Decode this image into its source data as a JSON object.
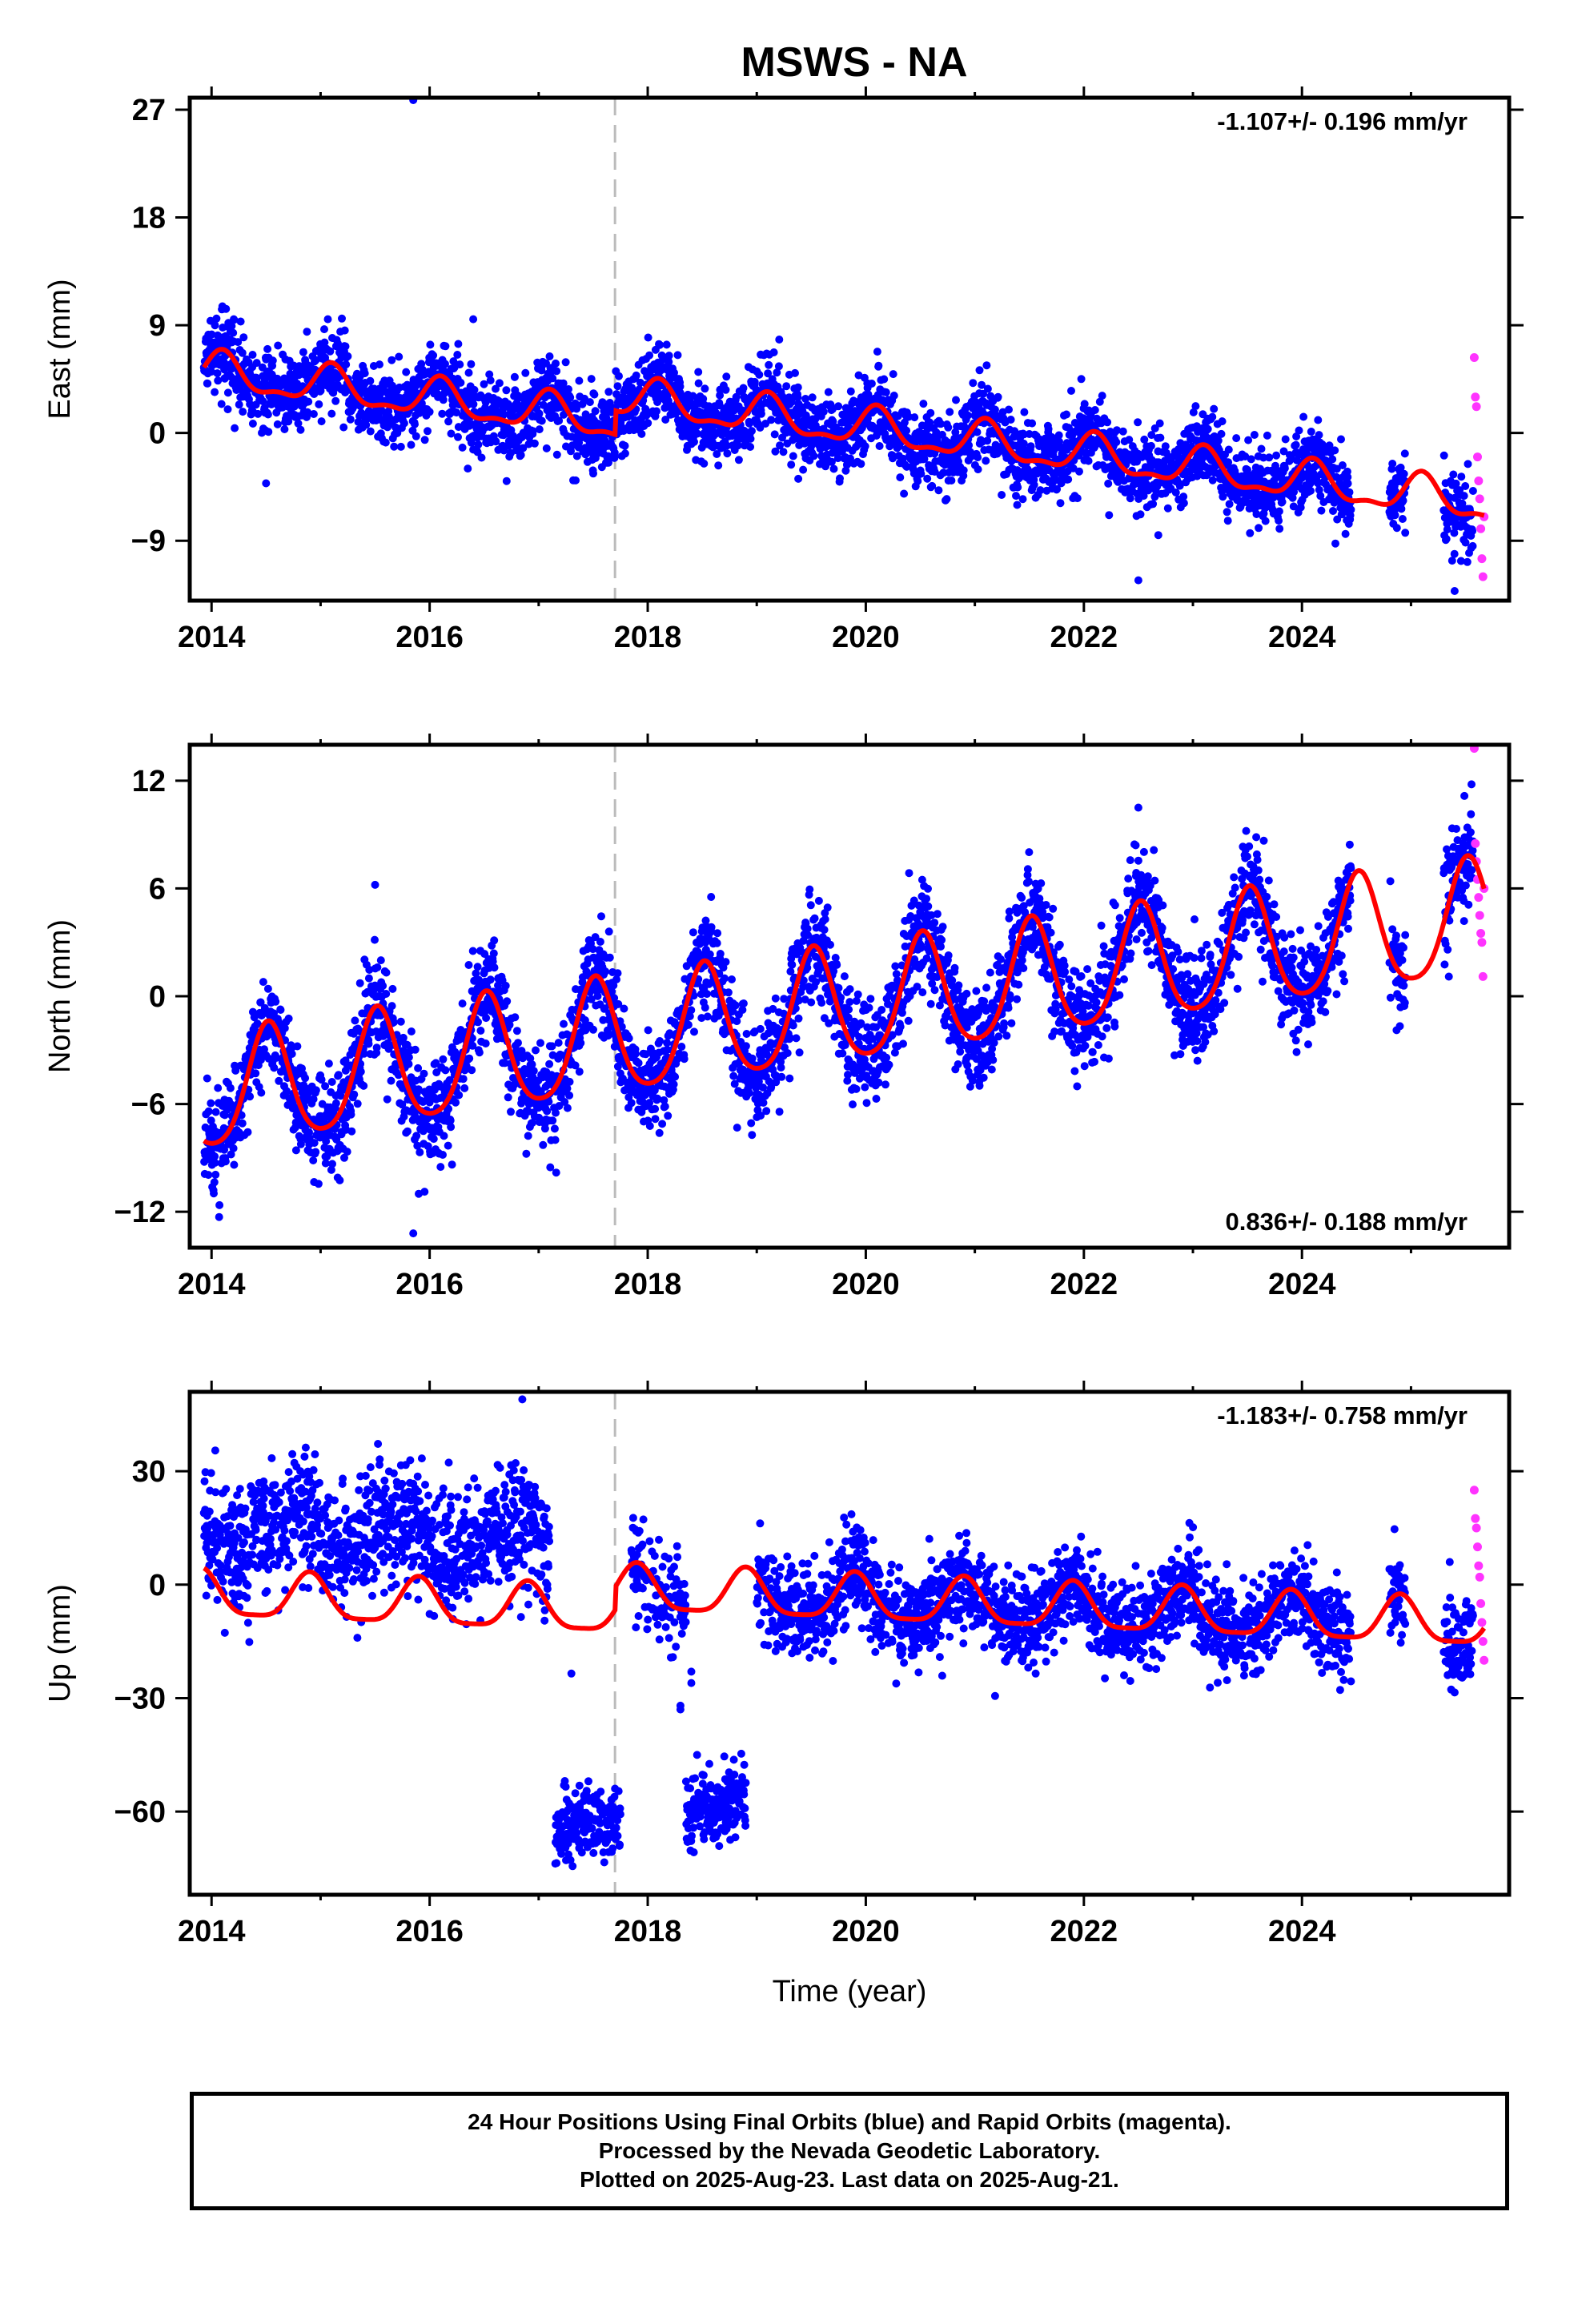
{
  "chart_data": {
    "type": "scatter",
    "title": "MSWS - NA",
    "xlabel": "Time (year)",
    "xlim": [
      2013.8,
      2025.9
    ],
    "x_ticks": [
      "2014",
      "2016",
      "2018",
      "2020",
      "2022",
      "2024"
    ],
    "antenna_change_year": 2017.7,
    "series_legend": {
      "final_orbits_color": "#0000ff",
      "rapid_orbits_color": "#ff33ff",
      "model_color": "#ff0000"
    },
    "panels": [
      {
        "name": "east",
        "ylabel": "East (mm)",
        "ylim": [
          -14,
          28
        ],
        "y_ticks": [
          "27",
          "18",
          "9",
          "0",
          "-9"
        ],
        "rate_text": "-1.107+/- 0.196 mm/yr",
        "rate_position": "top-right",
        "trend_rate": -1.107,
        "trend_intercept_2014": 5.0,
        "annual_amplitude": 1.5,
        "annual_phase_peak": 0.1,
        "semiannual_amplitude": 0.6,
        "offset_at_antenna_change": 2.0,
        "noise_std": 1.6,
        "outliers": [
          [
            2015.85,
            27.8
          ],
          [
            2016.4,
            9.5
          ],
          [
            2014.5,
            -4.2
          ],
          [
            2022.5,
            -12.3
          ],
          [
            2025.4,
            -13.2
          ]
        ],
        "gaps": [
          [
            2024.45,
            2024.8
          ],
          [
            2024.95,
            2025.3
          ]
        ],
        "rapid_points": [
          [
            2025.58,
            6.3
          ],
          [
            2025.59,
            3.0
          ],
          [
            2025.6,
            2.2
          ],
          [
            2025.61,
            -2.0
          ],
          [
            2025.62,
            -4.0
          ],
          [
            2025.63,
            -5.5
          ],
          [
            2025.64,
            -8.0
          ],
          [
            2025.65,
            -10.5
          ],
          [
            2025.66,
            -12.0
          ],
          [
            2025.67,
            -7.0
          ]
        ]
      },
      {
        "name": "north",
        "ylabel": "North (mm)",
        "ylim": [
          -14,
          14
        ],
        "y_ticks": [
          "12",
          "6",
          "0",
          "-6",
          "-12"
        ],
        "rate_text": "0.836+/- 0.188 mm/yr",
        "rate_position": "bottom-right",
        "trend_rate": 0.836,
        "trend_intercept_2014": -5.5,
        "annual_amplitude": 3.2,
        "annual_phase_peak": 0.52,
        "semiannual_amplitude": 0.5,
        "offset_at_antenna_change": 0.0,
        "noise_std": 1.4,
        "outliers": [
          [
            2015.85,
            -13.2
          ],
          [
            2015.9,
            -11.0
          ],
          [
            2016.1,
            -9.5
          ],
          [
            2022.5,
            10.5
          ],
          [
            2015.5,
            6.2
          ]
        ],
        "gaps": [
          [
            2024.45,
            2024.8
          ],
          [
            2024.95,
            2025.3
          ]
        ],
        "rapid_points": [
          [
            2025.58,
            13.8
          ],
          [
            2025.59,
            8.5
          ],
          [
            2025.6,
            7.5
          ],
          [
            2025.61,
            6.5
          ],
          [
            2025.62,
            5.5
          ],
          [
            2025.63,
            4.5
          ],
          [
            2025.64,
            3.5
          ],
          [
            2025.65,
            3.0
          ],
          [
            2025.66,
            1.1
          ],
          [
            2025.67,
            6.0
          ]
        ]
      },
      {
        "name": "up",
        "ylabel": "Up (mm)",
        "ylim": [
          -82,
          51
        ],
        "y_ticks": [
          "30",
          "0",
          "-30",
          "-60"
        ],
        "rate_text": "-1.183+/- 0.758 mm/yr",
        "rate_position": "top-right",
        "trend_rate": -1.183,
        "trend_intercept_2014": -3.0,
        "annual_amplitude": 6.0,
        "annual_phase_peak": 0.9,
        "semiannual_amplitude": 1.5,
        "offset_at_antenna_change": 6.0,
        "noise_std": 6.0,
        "early_bias": 18.0,
        "early_bias_end": 2017.1,
        "low_clusters": [
          [
            2017.15,
            2017.75,
            -66.0
          ],
          [
            2018.35,
            2018.9,
            -60.0
          ]
        ],
        "outliers": [
          [
            2016.85,
            49.0
          ],
          [
            2017.3,
            -23.5
          ],
          [
            2018.4,
            -23.0
          ],
          [
            2018.4,
            -26.0
          ],
          [
            2018.3,
            -32.0
          ],
          [
            2018.3,
            -33.0
          ],
          [
            2025.4,
            -28.5
          ]
        ],
        "gaps": [
          [
            2024.45,
            2024.8
          ],
          [
            2024.95,
            2025.3
          ]
        ],
        "rapid_points": [
          [
            2025.58,
            25.0
          ],
          [
            2025.59,
            17.5
          ],
          [
            2025.6,
            15.0
          ],
          [
            2025.61,
            10.0
          ],
          [
            2025.62,
            5.0
          ],
          [
            2025.63,
            2.0
          ],
          [
            2025.64,
            -5.0
          ],
          [
            2025.65,
            -10.0
          ],
          [
            2025.66,
            -15.0
          ],
          [
            2025.67,
            -20.0
          ]
        ]
      }
    ]
  },
  "footer": {
    "line1": "24 Hour Positions Using Final Orbits (blue) and Rapid Orbits (magenta).",
    "line2": "Processed by the Nevada Geodetic Laboratory.",
    "line3": "Plotted on 2025-Aug-23. Last data on 2025-Aug-21."
  }
}
